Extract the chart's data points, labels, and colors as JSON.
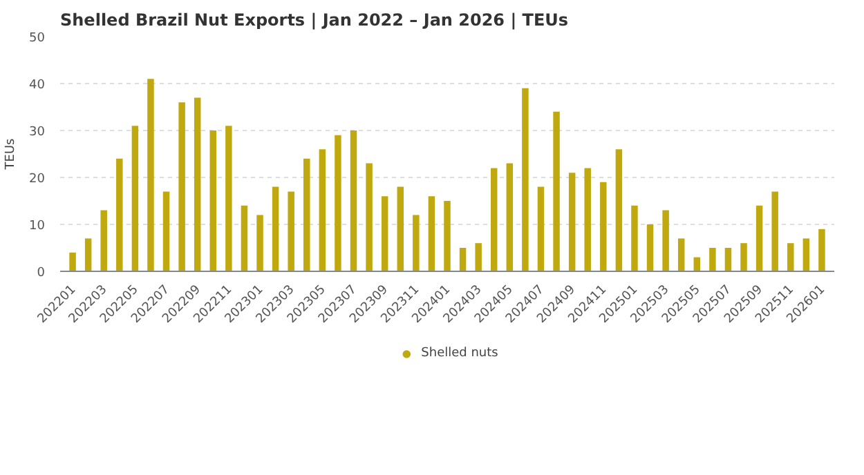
{
  "chart_data": {
    "type": "bar",
    "title": "Shelled Brazil Nut Exports | Jan 2022 – Jan 2026 | TEUs",
    "ylabel": "TEUs",
    "categories": [
      "202201",
      null,
      "202203",
      null,
      "202205",
      null,
      "202207",
      null,
      "202209",
      null,
      "202211",
      null,
      "202301",
      null,
      "202303",
      null,
      "202305",
      null,
      "202307",
      null,
      "202309",
      null,
      "202311",
      null,
      "202401",
      null,
      "202403",
      null,
      "202405",
      null,
      "202407",
      null,
      "202409",
      null,
      "202411",
      null,
      "202501",
      null,
      "202503",
      null,
      "202505",
      null,
      "202507",
      null,
      "202509",
      null,
      "202511",
      null,
      "202601"
    ],
    "series": [
      {
        "name": "Shelled nuts",
        "color": "#c0a80f",
        "values": [
          4,
          7,
          13,
          24,
          31,
          41,
          17,
          36,
          37,
          30,
          31,
          14,
          12,
          18,
          17,
          24,
          26,
          29,
          30,
          23,
          16,
          18,
          12,
          16,
          15,
          5,
          6,
          22,
          23,
          39,
          18,
          34,
          21,
          22,
          19,
          26,
          14,
          10,
          13,
          7,
          3,
          5,
          5,
          6,
          14,
          17,
          6,
          7,
          9
        ]
      }
    ],
    "ylim": [
      0,
      50
    ],
    "yticks": [
      0,
      10,
      20,
      30,
      40,
      50
    ],
    "grid": "y",
    "legend": "bottom"
  }
}
